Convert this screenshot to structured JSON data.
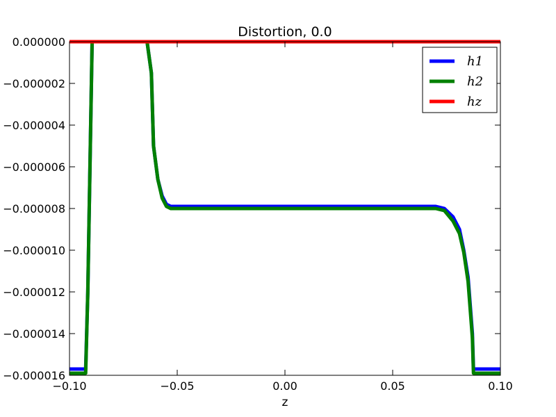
{
  "chart_data": {
    "type": "line",
    "title": "Distortion, 0.0",
    "xlabel": "z",
    "ylabel": "",
    "xlim": [
      -0.1,
      0.1
    ],
    "ylim": [
      -1.6e-05,
      0.0
    ],
    "grid": false,
    "legend_position": "top-right",
    "x_ticks": [
      -0.1,
      -0.05,
      0.0,
      0.05,
      0.1
    ],
    "x_tick_labels": [
      "−0.10",
      "−0.05",
      "0.00",
      "0.05",
      "0.10"
    ],
    "y_ticks": [
      0.0,
      -2e-06,
      -4e-06,
      -6e-06,
      -8e-06,
      -1e-05,
      -1.2e-05,
      -1.4e-05,
      -1.6e-05
    ],
    "y_tick_labels": [
      "0.000000",
      "−0.000002",
      "−0.000004",
      "−0.000006",
      "−0.000008",
      "−0.000010",
      "−0.000012",
      "−0.000014",
      "−0.000016"
    ],
    "series": [
      {
        "name": "h1",
        "color": "#0000ff",
        "x": [
          -0.1,
          -0.0925,
          -0.0915,
          -0.0905,
          -0.0895,
          -0.064,
          -0.062,
          -0.061,
          -0.059,
          -0.057,
          -0.055,
          -0.053,
          -0.05,
          -0.045,
          -0.04,
          0.0,
          0.06,
          0.07,
          0.074,
          0.078,
          0.081,
          0.083,
          0.085,
          0.087,
          0.0875,
          0.1
        ],
        "y": [
          -1.57e-05,
          -1.57e-05,
          -1.2e-05,
          -6e-06,
          0.0,
          0.0,
          -1.5e-06,
          -5e-06,
          -6.6e-06,
          -7.4e-06,
          -7.8e-06,
          -7.9e-06,
          -7.9e-06,
          -7.9e-06,
          -7.9e-06,
          -7.9e-06,
          -7.9e-06,
          -7.9e-06,
          -8e-06,
          -8.4e-06,
          -9e-06,
          -1e-05,
          -1.13e-05,
          -1.4e-05,
          -1.57e-05,
          -1.57e-05
        ]
      },
      {
        "name": "h2",
        "color": "#008000",
        "x": [
          -0.1,
          -0.0925,
          -0.0915,
          -0.0905,
          -0.0895,
          -0.064,
          -0.062,
          -0.061,
          -0.059,
          -0.057,
          -0.055,
          -0.053,
          -0.05,
          -0.045,
          -0.04,
          0.0,
          0.06,
          0.07,
          0.074,
          0.078,
          0.081,
          0.083,
          0.085,
          0.087,
          0.0875,
          0.1
        ],
        "y": [
          -1.59e-05,
          -1.59e-05,
          -1.2e-05,
          -6e-06,
          0.0,
          0.0,
          -1.5e-06,
          -5e-06,
          -6.6e-06,
          -7.5e-06,
          -7.9e-06,
          -8e-06,
          -8e-06,
          -8e-06,
          -8e-06,
          -8e-06,
          -8e-06,
          -8e-06,
          -8.1e-06,
          -8.6e-06,
          -9.2e-06,
          -1.01e-05,
          -1.15e-05,
          -1.42e-05,
          -1.59e-05,
          -1.59e-05
        ]
      },
      {
        "name": "hz",
        "color": "#ff0000",
        "x": [
          -0.1,
          0.1
        ],
        "y": [
          0.0,
          0.0
        ]
      }
    ],
    "legend_entries": [
      "h1",
      "h2",
      "hz"
    ]
  }
}
